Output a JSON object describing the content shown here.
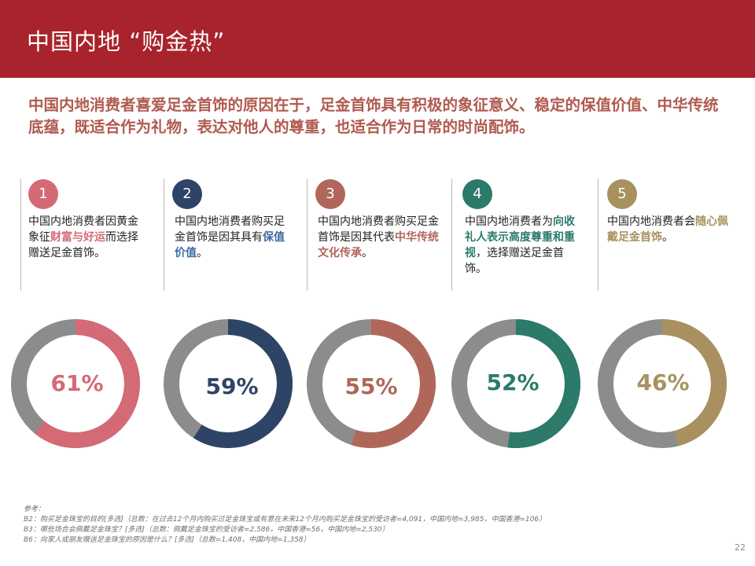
{
  "header": {
    "title": "中国内地 “购金热”"
  },
  "intro": "中国内地消费者喜爱足金首饰的原因在于，足金首饰具有积极的象征意义、稳定的保值价值、中华传统底蕴，既适合作为礼物，表达对他人的尊重，也适合作为日常的时尚配饰。",
  "colors": {
    "track": "#8c8c8c",
    "header_bg": "#a8232c"
  },
  "chart_data": {
    "type": "donut",
    "items": [
      {
        "number": "1",
        "label": "61%",
        "value": 61,
        "color": "#d46a76",
        "desc_pre": "中国内地消费者因黄金象征",
        "desc_hl": "财富与好运",
        "desc_post": "而选择赠送足金首饰。"
      },
      {
        "number": "2",
        "label": "59%",
        "value": 59,
        "color": "#2e4466",
        "desc_pre": "中国内地消费者购买足金首饰是因其具有",
        "desc_hl": "保值价值",
        "desc_post": "。"
      },
      {
        "number": "3",
        "label": "55%",
        "value": 55,
        "color": "#b0675a",
        "desc_pre": "中国内地消费者购买足金首饰是因其代表",
        "desc_hl": "中华传统文化传承",
        "desc_post": "。"
      },
      {
        "number": "4",
        "label": "52%",
        "value": 52,
        "color": "#2b7a6a",
        "desc_pre": "中国内地消费者为",
        "desc_hl": "向收礼人表示高度尊重和重视",
        "desc_post": "，选择赠送足金首饰。"
      },
      {
        "number": "5",
        "label": "46%",
        "value": 46,
        "color": "#a8915e",
        "desc_pre": "中国内地消费者会",
        "desc_hl": "随心佩戴足金首饰",
        "desc_post": "。"
      }
    ]
  },
  "notes": {
    "heading": "参考：",
    "lines": [
      "B2：购买足金珠宝的目的[多选]（总数：在过去12个月内购买过足金珠宝或有意在未来12个月内购买足金珠宝的受访者=4,091，中国内地=3,985，中国香港=106）",
      "B3：哪些场合会佩戴足金珠宝？[多选]（总数：佩戴足金珠宝的受访者=2,586，中国香港=56，中国内地=2,530）",
      "B6：向家人或朋友赠送足金珠宝的原因是什么？[多选]（总数=1,408，中国内地=1,358）"
    ]
  },
  "page_number": "22"
}
